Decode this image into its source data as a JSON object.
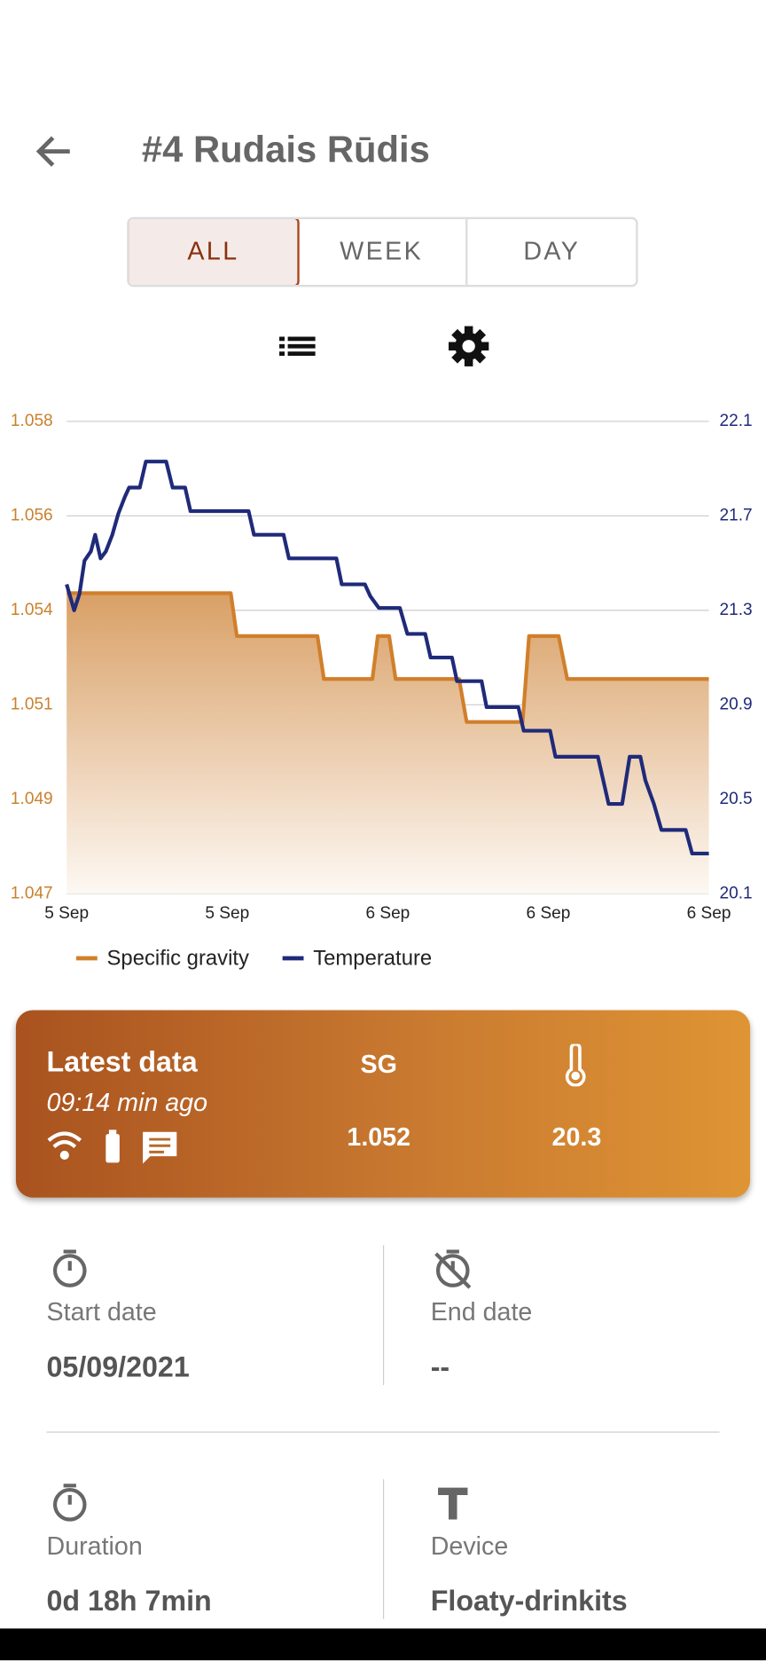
{
  "header": {
    "title": "#4 Rudais Rūdis"
  },
  "tabs": [
    "ALL",
    "WEEK",
    "DAY"
  ],
  "chart_data": {
    "type": "line",
    "xlim": [
      0,
      18
    ],
    "xticks": [
      {
        "value": 0,
        "label": "5 Sep"
      },
      {
        "value": 4.5,
        "label": "5 Sep"
      },
      {
        "value": 9,
        "label": "6 Sep"
      },
      {
        "value": 13.5,
        "label": "6 Sep"
      },
      {
        "value": 18,
        "label": "6 Sep"
      }
    ],
    "ylim": [
      1.047,
      1.058
    ],
    "yticks": [
      1.047,
      {
        "value": 1.0492,
        "label": "1.049"
      },
      {
        "value": 1.0514,
        "label": "1.051"
      },
      {
        "value": 1.0536,
        "label": "1.054"
      },
      {
        "value": 1.0558,
        "label": "1.056"
      },
      1.058
    ],
    "y2lim": [
      20.1,
      22.1
    ],
    "y2ticks": [
      20.1,
      20.5,
      20.9,
      21.3,
      21.7,
      22.1
    ],
    "grid": true,
    "series": [
      {
        "name": "Specific gravity",
        "color": "#d17f2b",
        "fill": true,
        "x": [
          0,
          4.6,
          4.77,
          7.03,
          7.21,
          8.57,
          8.72,
          9.04,
          9.22,
          11.0,
          11.21,
          12.78,
          12.96,
          13.79,
          14.03,
          18
        ],
        "values": [
          1.054,
          1.054,
          1.053,
          1.053,
          1.052,
          1.052,
          1.053,
          1.053,
          1.052,
          1.052,
          1.051,
          1.051,
          1.053,
          1.053,
          1.052,
          1.052
        ]
      },
      {
        "name": "Temperature",
        "color": "#1f2a7a",
        "axis": "y2",
        "x": [
          0,
          0.21,
          0.36,
          0.5,
          0.68,
          0.8,
          0.95,
          1.1,
          1.28,
          1.45,
          1.63,
          1.75,
          2.05,
          2.22,
          2.79,
          2.97,
          3.32,
          3.47,
          5.1,
          5.25,
          6.08,
          6.23,
          7.56,
          7.71,
          8.36,
          8.51,
          8.75,
          9.34,
          9.55,
          10.05,
          10.2,
          10.8,
          10.94,
          11.63,
          11.77,
          12.66,
          12.81,
          13.55,
          13.7,
          14.89,
          15.04,
          15.19,
          15.57,
          15.78,
          16.08,
          16.22,
          16.46,
          16.67,
          17.35,
          17.53,
          18
        ],
        "values": [
          21.41,
          21.3,
          21.37,
          21.51,
          21.55,
          21.62,
          21.52,
          21.55,
          21.62,
          21.71,
          21.78,
          21.82,
          21.82,
          21.93,
          21.93,
          21.82,
          21.82,
          21.72,
          21.72,
          21.62,
          21.62,
          21.52,
          21.52,
          21.41,
          21.41,
          21.36,
          21.31,
          21.31,
          21.2,
          21.2,
          21.1,
          21.1,
          21.0,
          21.0,
          20.89,
          20.89,
          20.79,
          20.79,
          20.68,
          20.68,
          20.58,
          20.48,
          20.48,
          20.68,
          20.68,
          20.58,
          20.48,
          20.37,
          20.37,
          20.27,
          20.27
        ]
      }
    ]
  },
  "latest": {
    "title": "Latest data",
    "time": "09:14 min ago",
    "sg_label": "SG",
    "sg": "1.052",
    "temp": "20.3"
  },
  "info": [
    {
      "label": "Start date",
      "value": "05/09/2021"
    },
    {
      "label": "End date",
      "value": "--"
    },
    {
      "label": "Duration",
      "value": "0d 18h 7min"
    },
    {
      "label": "Device",
      "value": "Floaty-drinkits"
    }
  ]
}
